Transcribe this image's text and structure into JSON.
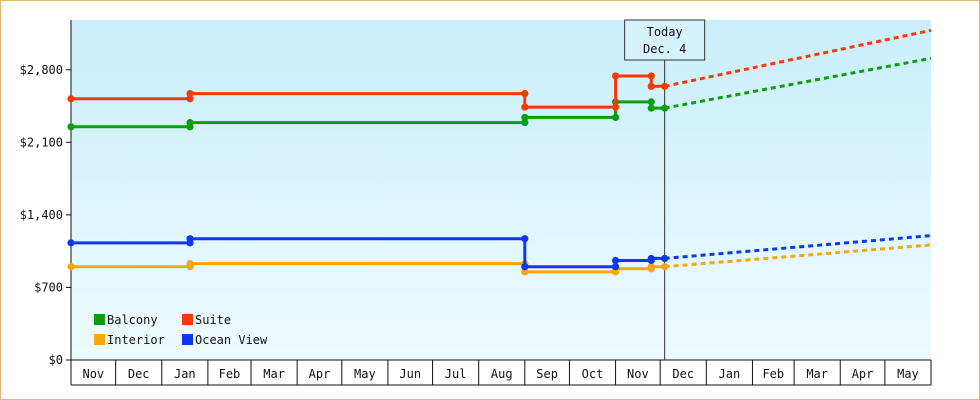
{
  "chart_data": {
    "type": "line",
    "y_ticks": [
      {
        "value": 0,
        "label": "$0"
      },
      {
        "value": 700,
        "label": "$700"
      },
      {
        "value": 1400,
        "label": "$1,400"
      },
      {
        "value": 2100,
        "label": "$2,100"
      },
      {
        "value": 2800,
        "label": "$2,800"
      }
    ],
    "ylim": [
      0,
      3280
    ],
    "x_range": [
      "2011-11-01",
      "2013-06-01"
    ],
    "x_ticks": [
      "Nov",
      "Dec",
      "Jan",
      "Feb",
      "Mar",
      "Apr",
      "May",
      "Jun",
      "Jul",
      "Aug",
      "Sep",
      "Oct",
      "Nov",
      "Dec",
      "Jan",
      "Feb",
      "Mar",
      "Apr",
      "May"
    ],
    "today": {
      "date": "2012-12-04",
      "label_line1": "Today",
      "label_line2": "Dec. 4"
    },
    "legend": [
      {
        "name": "Balcony",
        "color": "#0c9e0c"
      },
      {
        "name": "Suite",
        "color": "#f53b05"
      },
      {
        "name": "Interior",
        "color": "#f7a70a"
      },
      {
        "name": "Ocean View",
        "color": "#0c39f0"
      }
    ],
    "series": [
      {
        "name": "Balcony",
        "color": "#0c9e0c",
        "history": [
          {
            "date": "2011-11-01",
            "value": 2250
          },
          {
            "date": "2012-01-20",
            "value": 2250
          },
          {
            "date": "2012-01-20",
            "value": 2290
          },
          {
            "date": "2012-09-01",
            "value": 2290
          },
          {
            "date": "2012-09-01",
            "value": 2340
          },
          {
            "date": "2012-11-01",
            "value": 2340
          },
          {
            "date": "2012-11-01",
            "value": 2490
          },
          {
            "date": "2012-11-25",
            "value": 2490
          },
          {
            "date": "2012-11-25",
            "value": 2430
          },
          {
            "date": "2012-12-04",
            "value": 2430
          }
        ],
        "markers": [
          "2011-11-01",
          "2012-01-20",
          "2012-09-01",
          "2012-11-01",
          "2012-11-25",
          "2012-12-04"
        ],
        "forecast": [
          {
            "date": "2012-12-04",
            "value": 2430
          },
          {
            "date": "2013-06-01",
            "value": 2910
          }
        ]
      },
      {
        "name": "Suite",
        "color": "#f53b05",
        "history": [
          {
            "date": "2011-11-01",
            "value": 2520
          },
          {
            "date": "2012-01-20",
            "value": 2520
          },
          {
            "date": "2012-01-20",
            "value": 2570
          },
          {
            "date": "2012-09-01",
            "value": 2570
          },
          {
            "date": "2012-09-01",
            "value": 2440
          },
          {
            "date": "2012-11-01",
            "value": 2440
          },
          {
            "date": "2012-11-01",
            "value": 2740
          },
          {
            "date": "2012-11-25",
            "value": 2740
          },
          {
            "date": "2012-11-25",
            "value": 2640
          },
          {
            "date": "2012-12-04",
            "value": 2640
          }
        ],
        "markers": [
          "2011-11-01",
          "2012-01-20",
          "2012-09-01",
          "2012-11-01",
          "2012-11-25",
          "2012-12-04"
        ],
        "forecast": [
          {
            "date": "2012-12-04",
            "value": 2640
          },
          {
            "date": "2013-06-01",
            "value": 3180
          }
        ]
      },
      {
        "name": "Interior",
        "color": "#f7a70a",
        "history": [
          {
            "date": "2011-11-01",
            "value": 900
          },
          {
            "date": "2012-01-20",
            "value": 900
          },
          {
            "date": "2012-01-20",
            "value": 930
          },
          {
            "date": "2012-09-01",
            "value": 930
          },
          {
            "date": "2012-09-01",
            "value": 850
          },
          {
            "date": "2012-11-01",
            "value": 850
          },
          {
            "date": "2012-11-01",
            "value": 880
          },
          {
            "date": "2012-11-25",
            "value": 880
          },
          {
            "date": "2012-11-25",
            "value": 900
          },
          {
            "date": "2012-12-04",
            "value": 900
          }
        ],
        "markers": [
          "2011-11-01",
          "2012-01-20",
          "2012-09-01",
          "2012-11-01",
          "2012-11-25",
          "2012-12-04"
        ],
        "forecast": [
          {
            "date": "2012-12-04",
            "value": 900
          },
          {
            "date": "2013-06-01",
            "value": 1110
          }
        ]
      },
      {
        "name": "Ocean View",
        "color": "#0c39f0",
        "history": [
          {
            "date": "2011-11-01",
            "value": 1130
          },
          {
            "date": "2012-01-20",
            "value": 1130
          },
          {
            "date": "2012-01-20",
            "value": 1170
          },
          {
            "date": "2012-09-01",
            "value": 1170
          },
          {
            "date": "2012-09-01",
            "value": 900
          },
          {
            "date": "2012-11-01",
            "value": 900
          },
          {
            "date": "2012-11-01",
            "value": 960
          },
          {
            "date": "2012-11-25",
            "value": 960
          },
          {
            "date": "2012-11-25",
            "value": 980
          },
          {
            "date": "2012-12-04",
            "value": 980
          }
        ],
        "markers": [
          "2011-11-01",
          "2012-01-20",
          "2012-09-01",
          "2012-11-01",
          "2012-11-25",
          "2012-12-04"
        ],
        "forecast": [
          {
            "date": "2012-12-04",
            "value": 980
          },
          {
            "date": "2013-06-01",
            "value": 1200
          }
        ]
      }
    ]
  }
}
